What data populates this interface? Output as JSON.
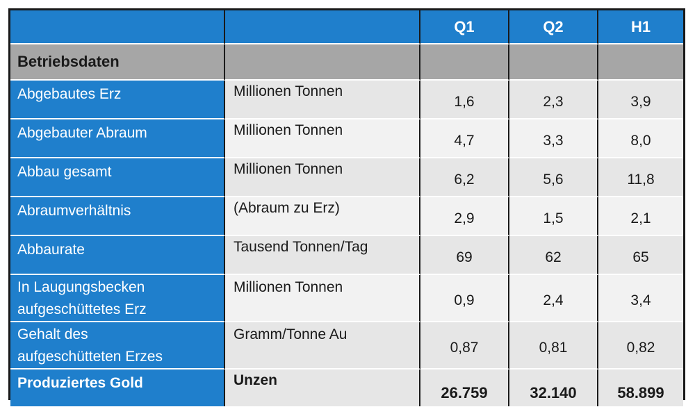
{
  "header": {
    "col1": "",
    "col2": "",
    "q1": "Q1",
    "q2": "Q2",
    "h1": "H1"
  },
  "section": {
    "title": "Betriebsdaten"
  },
  "rows": [
    {
      "label": "Abgebautes Erz",
      "unit": "Millionen Tonnen",
      "q1": "1,6",
      "q2": "2,3",
      "h1": "3,9"
    },
    {
      "label": "Abgebauter Abraum",
      "unit": "Millionen Tonnen",
      "q1": "4,7",
      "q2": "3,3",
      "h1": "8,0"
    },
    {
      "label": "Abbau gesamt",
      "unit": "Millionen Tonnen",
      "q1": "6,2",
      "q2": "5,6",
      "h1": "11,8"
    },
    {
      "label": "Abraumverhältnis",
      "unit": "(Abraum zu Erz)",
      "q1": "2,9",
      "q2": "1,5",
      "h1": "2,1"
    },
    {
      "label": "Abbaurate",
      "unit": "Tausend Tonnen/Tag",
      "q1": "69",
      "q2": "62",
      "h1": "65"
    },
    {
      "label_line1": "In Laugungsbecken",
      "label_line2": "aufgeschüttetes Erz",
      "unit": "Millionen Tonnen",
      "q1": "0,9",
      "q2": "2,4",
      "h1": "3,4"
    },
    {
      "label_line1": "Gehalt des",
      "label_line2": "aufgeschütteten Erzes",
      "unit": "Gramm/Tonne Au",
      "q1": "0,87",
      "q2": "0,81",
      "h1": "0,82"
    }
  ],
  "total": {
    "label": "Produziertes Gold",
    "unit": "Unzen",
    "q1": "26.759",
    "q2": "32.140",
    "h1": "58.899"
  },
  "colors": {
    "header_blue": "#1f7fcc",
    "section_gray": "#a6a6a6",
    "row_light": "#f2f2f2",
    "row_mid": "#e6e6e6",
    "border": "#1a1a1a"
  }
}
